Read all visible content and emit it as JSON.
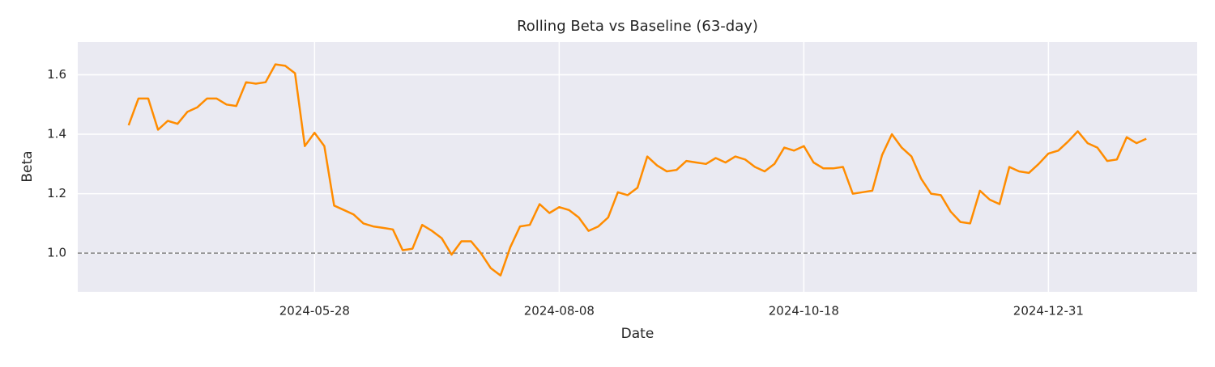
{
  "chart_data": {
    "type": "line",
    "title": "Rolling Beta vs Baseline (63-day)",
    "x_label": "Date",
    "y_label": "Beta",
    "series": [
      {
        "color": "#ff8c00",
        "values": [
          1.43,
          1.52,
          1.52,
          1.415,
          1.445,
          1.435,
          1.475,
          1.49,
          1.52,
          1.52,
          1.5,
          1.495,
          1.575,
          1.57,
          1.575,
          1.635,
          1.63,
          1.605,
          1.36,
          1.405,
          1.36,
          1.16,
          1.145,
          1.13,
          1.1,
          1.09,
          1.085,
          1.08,
          1.01,
          1.015,
          1.095,
          1.075,
          1.05,
          0.995,
          1.04,
          1.04,
          1.0,
          0.95,
          0.925,
          1.02,
          1.09,
          1.095,
          1.165,
          1.135,
          1.155,
          1.145,
          1.12,
          1.075,
          1.09,
          1.12,
          1.205,
          1.195,
          1.22,
          1.325,
          1.295,
          1.275,
          1.28,
          1.31,
          1.305,
          1.3,
          1.32,
          1.305,
          1.325,
          1.315,
          1.29,
          1.275,
          1.3,
          1.355,
          1.345,
          1.36,
          1.305,
          1.285,
          1.285,
          1.29,
          1.2,
          1.205,
          1.21,
          1.33,
          1.4,
          1.355,
          1.325,
          1.25,
          1.2,
          1.195,
          1.14,
          1.105,
          1.1,
          1.21,
          1.18,
          1.165,
          1.29,
          1.275,
          1.27,
          1.3,
          1.335,
          1.345,
          1.375,
          1.41,
          1.37,
          1.355,
          1.31,
          1.315,
          1.39,
          1.37,
          1.385
        ]
      }
    ],
    "baseline": 1.0,
    "baseline_color": "#808080",
    "xlim": [
      -5.2,
      109.2
    ],
    "xticks": [
      {
        "value": 19,
        "label": "2024-05-28"
      },
      {
        "value": 44,
        "label": "2024-08-08"
      },
      {
        "value": 69,
        "label": "2024-10-18"
      },
      {
        "value": 94,
        "label": "2024-12-31"
      }
    ],
    "ylim": [
      0.87,
      1.71
    ],
    "yticks": [
      {
        "value": 1.0,
        "label": "1.0"
      },
      {
        "value": 1.2,
        "label": "1.2"
      },
      {
        "value": 1.4,
        "label": "1.4"
      },
      {
        "value": 1.6,
        "label": "1.6"
      }
    ],
    "grid": true
  }
}
